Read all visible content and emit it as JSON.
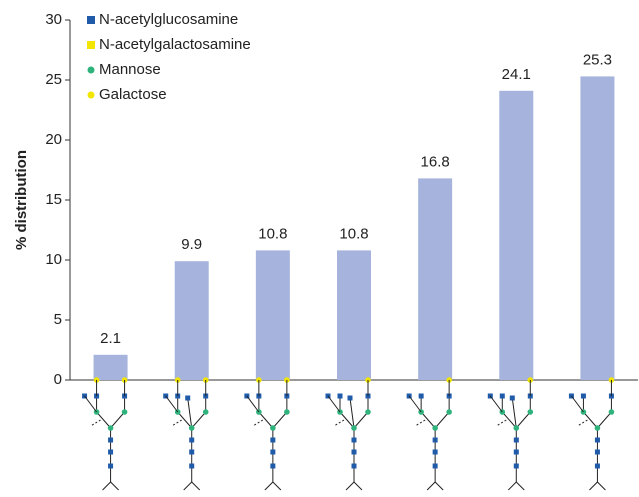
{
  "chart_data": {
    "type": "bar",
    "y_label": "% distribution",
    "categories": [
      null,
      null,
      null,
      null,
      null,
      null,
      null
    ],
    "values": [
      2.1,
      9.9,
      10.8,
      10.8,
      16.8,
      24.1,
      25.3
    ],
    "color": "#a6b4dd",
    "ylim": [
      0,
      30
    ],
    "yticks": [
      0,
      5,
      10,
      15,
      20,
      25,
      30
    ],
    "grid": false,
    "legend": [
      {
        "name": "N-acetylglucosamine",
        "color": "#1f5ba8",
        "shape": "square"
      },
      {
        "name": "N-acetylgalactosamine",
        "color": "#f2e600",
        "shape": "square"
      },
      {
        "name": "Mannose",
        "color": "#2fb37c",
        "shape": "circle"
      },
      {
        "name": "Galactose",
        "color": "#f2e600",
        "shape": "circle"
      }
    ]
  }
}
